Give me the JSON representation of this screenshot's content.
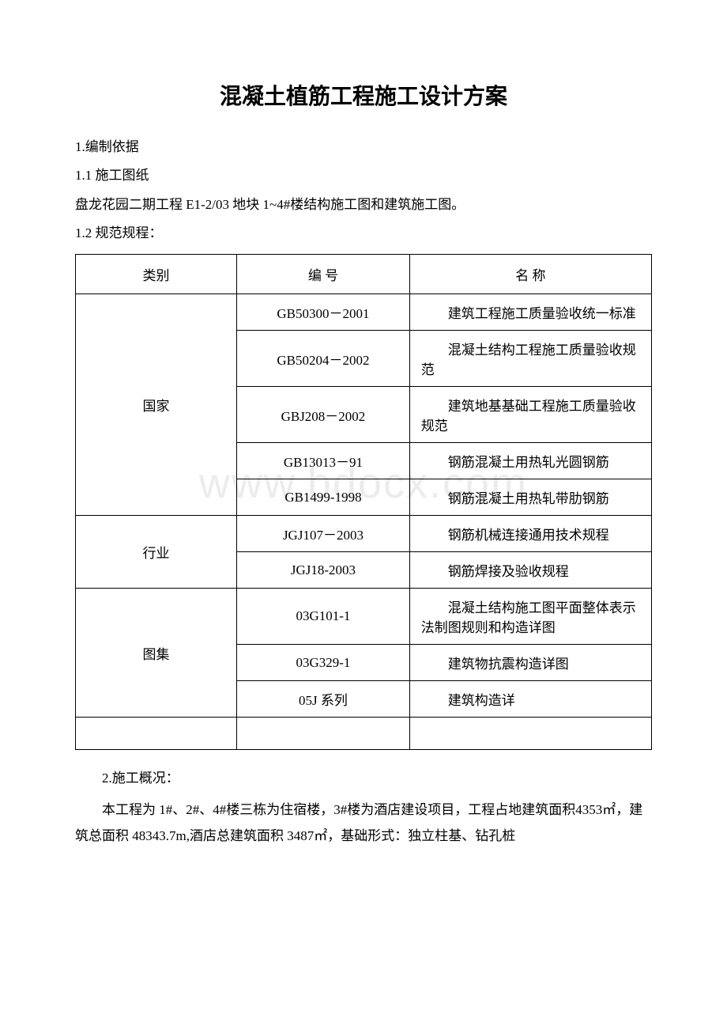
{
  "document": {
    "title": "混凝土植筋工程施工设计方案",
    "watermark": "www.bdocx.com",
    "sections": {
      "s1": "1.编制依据",
      "s1_1": "1.1 施工图纸",
      "s1_1_content": "盘龙花园二期工程 E1-2/03 地块 1~4#楼结构施工图和建筑施工图。",
      "s1_2": "1.2 规范规程：",
      "s2": "2.施工概况：",
      "s2_content": "本工程为 1#、2#、4#楼三栋为住宿楼，3#楼为酒店建设项目，工程占地建筑面积4353㎡，建筑总面积 48343.7m,酒店总建筑面积 3487㎡，基础形式：独立柱基、钻孔桩"
    },
    "table": {
      "headers": {
        "category": "类别",
        "code": "编 号",
        "name": "名 称"
      },
      "rows": [
        {
          "category": "国家",
          "category_rowspan": 5,
          "code": "GB50300－2001",
          "name": "建筑工程施工质量验收统一标准"
        },
        {
          "code": "GB50204－2002",
          "name": "混凝土结构工程施工质量验收规范"
        },
        {
          "code": "GBJ208－2002",
          "name": "建筑地基基础工程施工质量验收规范"
        },
        {
          "code": "GB13013－91",
          "name": "钢筋混凝土用热轧光圆钢筋"
        },
        {
          "code": "GB1499-1998",
          "name": "钢筋混凝土用热轧带肋钢筋"
        },
        {
          "category": "行业",
          "category_rowspan": 2,
          "code": "JGJ107－2003",
          "name": "钢筋机械连接通用技术规程"
        },
        {
          "code": "JGJ18-2003",
          "name": "钢筋焊接及验收规程"
        },
        {
          "category": "图集",
          "category_rowspan": 3,
          "code": "03G101-1",
          "name": "混凝土结构施工图平面整体表示法制图规则和构造详图"
        },
        {
          "code": "03G329-1",
          "name": "建筑物抗震构造详图"
        },
        {
          "code": "05J 系列",
          "name": "建筑构造详"
        }
      ]
    }
  }
}
